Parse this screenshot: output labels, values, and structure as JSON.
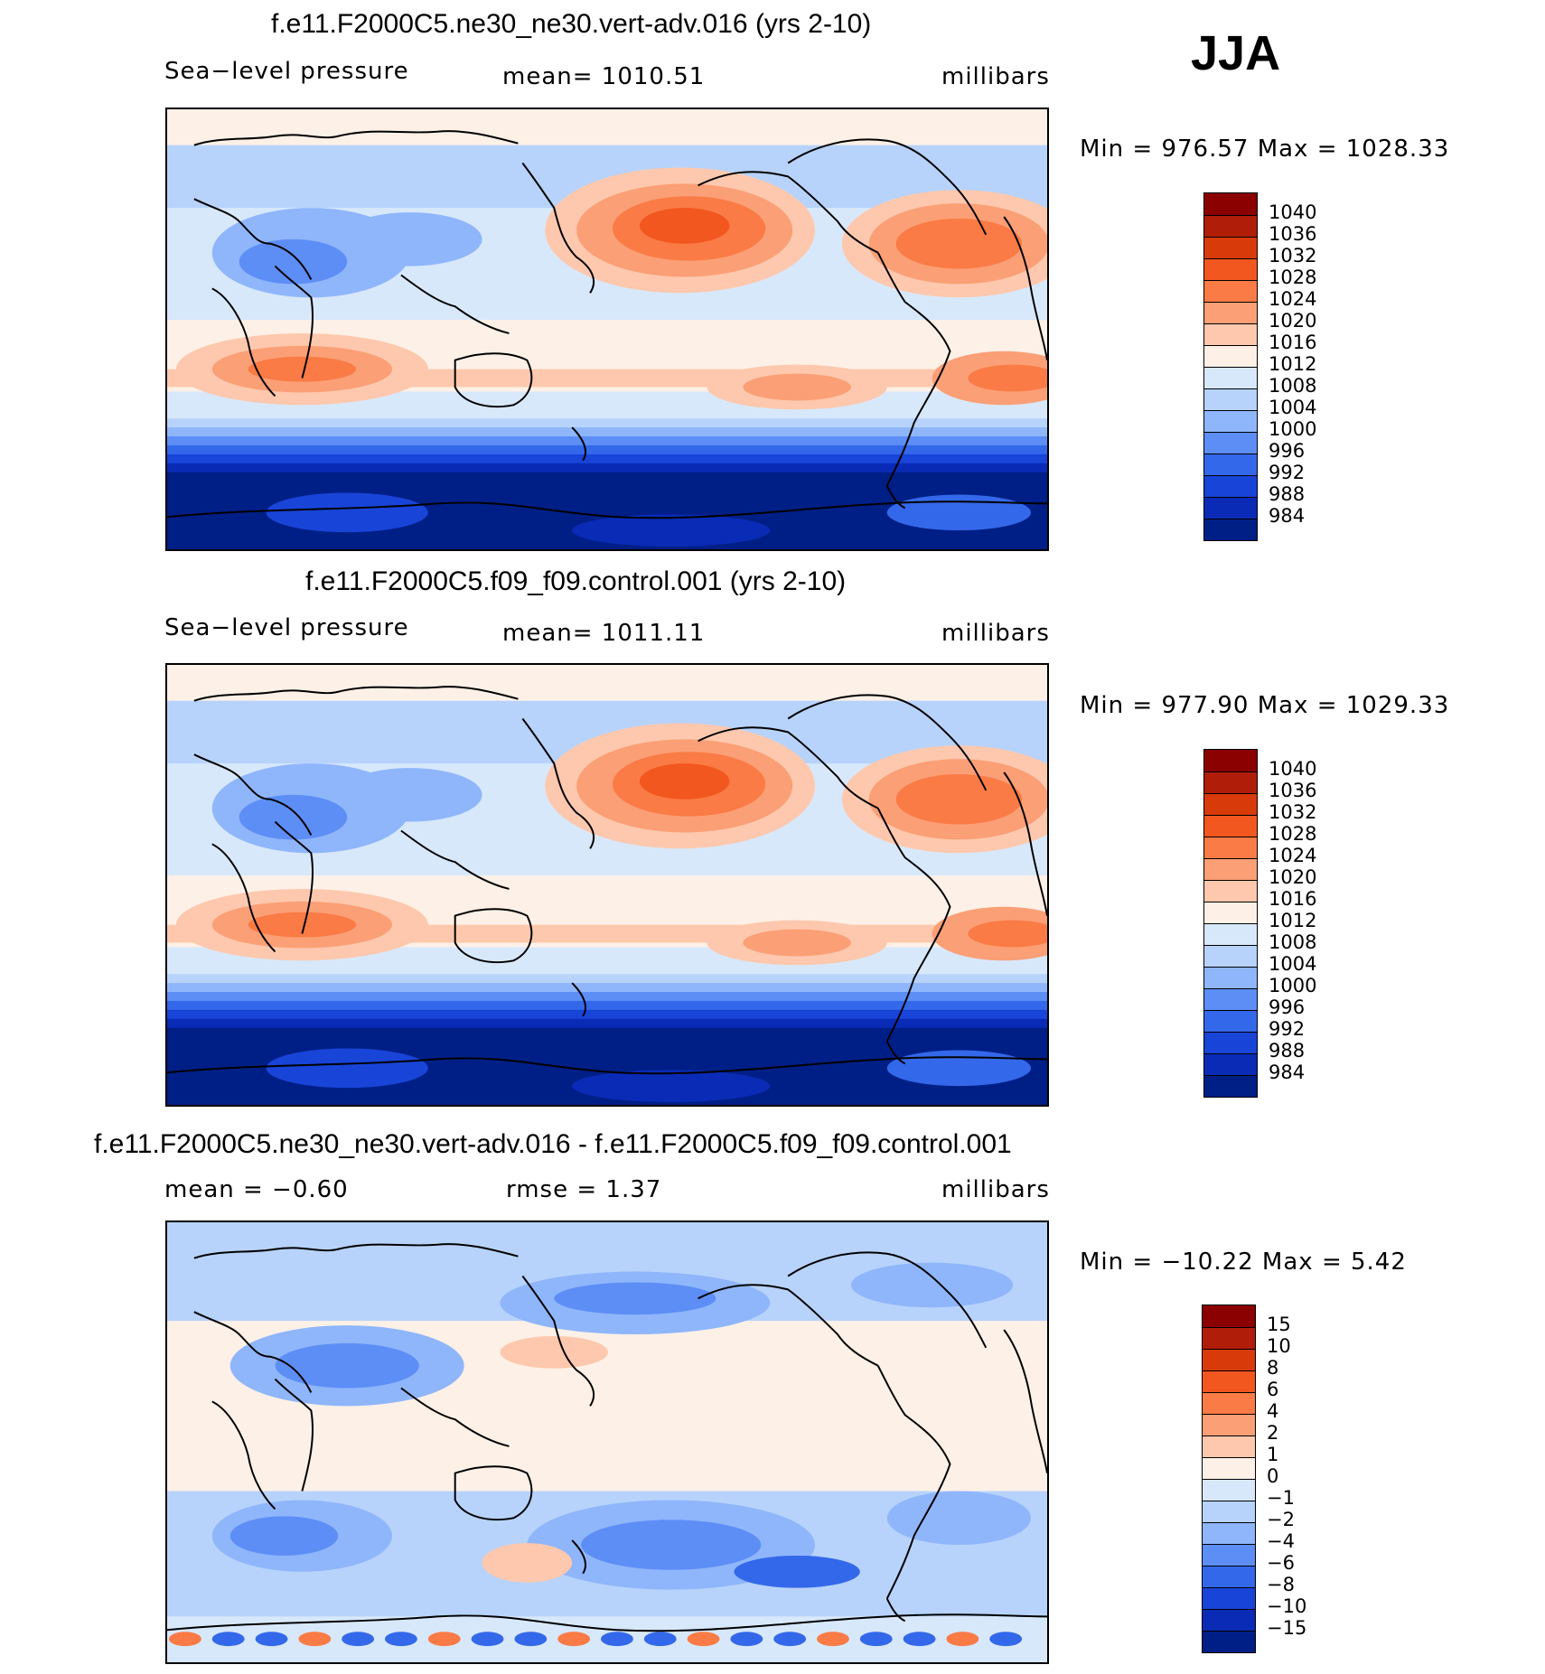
{
  "season": "JJA",
  "panels": [
    {
      "id": "test",
      "title": "f.e11.F2000C5.ne30_ne30.vert-adv.016 (yrs 2-10)",
      "left_label": "Sea−level pressure",
      "center_label": "mean=  1010.51",
      "right_label": "millibars",
      "minmax": "Min  =  976.57  Max  =  1028.33",
      "colorbar_labels": [
        "1040",
        "1036",
        "1032",
        "1028",
        "1024",
        "1020",
        "1016",
        "1012",
        "1008",
        "1004",
        "1000",
        "996",
        "992",
        "988",
        "984"
      ]
    },
    {
      "id": "control",
      "title": "f.e11.F2000C5.f09_f09.control.001 (yrs 2-10)",
      "left_label": "Sea−level pressure",
      "center_label": "mean=  1011.11",
      "right_label": "millibars",
      "minmax": "Min  =  977.90  Max  =  1029.33",
      "colorbar_labels": [
        "1040",
        "1036",
        "1032",
        "1028",
        "1024",
        "1020",
        "1016",
        "1012",
        "1008",
        "1004",
        "1000",
        "996",
        "992",
        "988",
        "984"
      ]
    },
    {
      "id": "difference",
      "title": "f.e11.F2000C5.ne30_ne30.vert-adv.016 - f.e11.F2000C5.f09_f09.control.001",
      "left_label": "mean  =   −0.60",
      "center_label": "rmse  =     1.37",
      "right_label": "millibars",
      "minmax": "Min  =  −10.22  Max  =      5.42",
      "colorbar_labels": [
        "15",
        "10",
        "8",
        "6",
        "4",
        "2",
        "1",
        "0",
        "−1",
        "−2",
        "−4",
        "−6",
        "−8",
        "−10",
        "−15"
      ]
    }
  ],
  "colors": {
    "abs_scale": [
      "#8b0000",
      "#b01e0a",
      "#d93a0a",
      "#f2571f",
      "#fa7b45",
      "#fb9f76",
      "#fdc8ad",
      "#fdf0e6",
      "#d8e8fb",
      "#b7d3fb",
      "#8fb6fb",
      "#5d8ef6",
      "#3468ea",
      "#1844d8",
      "#0a2bb6",
      "#001f86"
    ],
    "diff_scale": [
      "#8b0000",
      "#b01e0a",
      "#d93a0a",
      "#f2571f",
      "#fa7b45",
      "#fb9f76",
      "#fdc8ad",
      "#fdf0e6",
      "#d8e8fb",
      "#b7d3fb",
      "#8fb6fb",
      "#5d8ef6",
      "#3468ea",
      "#1844d8",
      "#0a2bb6",
      "#001f86"
    ]
  }
}
